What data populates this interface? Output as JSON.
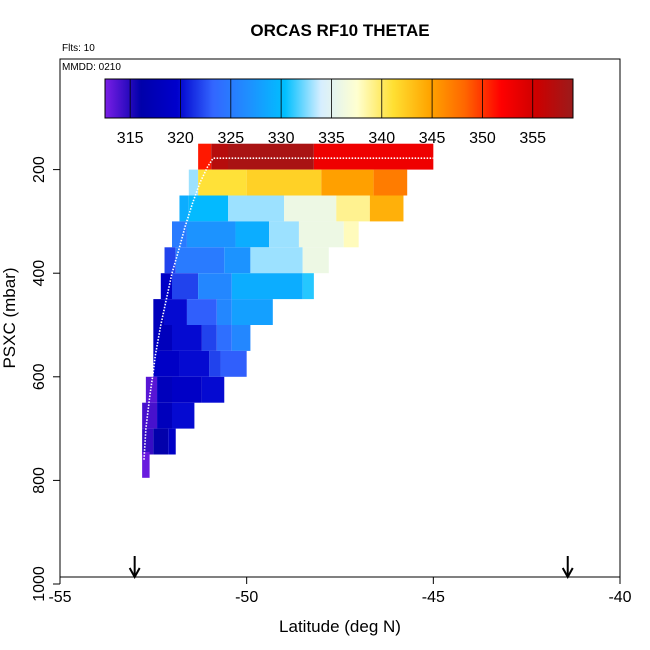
{
  "chart_data": {
    "type": "heatmap",
    "title": "ORCAS RF10 THETAE",
    "annotations": {
      "flights": "Flts: 10",
      "date": "MMDD: 0210"
    },
    "xlabel": "Latitude (deg N)",
    "ylabel": "PSXC (mbar)",
    "xlim": [
      -55,
      -40
    ],
    "ylim": [
      1000,
      0
    ],
    "x_ticks": [
      -55,
      -50,
      -45,
      -40
    ],
    "x_tick_labels": [
      "-55",
      "-50",
      "-45",
      "-40"
    ],
    "y_ticks": [
      200,
      400,
      600,
      800,
      1000
    ],
    "y_tick_labels": [
      "200",
      "400",
      "600",
      "800",
      "1000"
    ],
    "colorbar": {
      "min": 312.5,
      "max": 359,
      "ticks": [
        315,
        320,
        325,
        330,
        335,
        340,
        345,
        350,
        355
      ],
      "tick_labels": [
        "315",
        "320",
        "325",
        "330",
        "335",
        "340",
        "345",
        "350",
        "355"
      ],
      "stops": [
        "#7a1ee6",
        "#0000aa",
        "#0000cc",
        "#3366ff",
        "#1e90ff",
        "#00bfff",
        "#d6eeff",
        "#ffffd0",
        "#ffe033",
        "#ffa500",
        "#ff6600",
        "#ff0000",
        "#cc0000",
        "#9b1b1b"
      ]
    },
    "arrows_at_latitude": [
      -53,
      -41.4
    ],
    "cell_height_mbar": 50,
    "rows": [
      {
        "p": 175,
        "cells": [
          [
            -51.3,
            -50.95,
            351
          ],
          [
            -50.95,
            -50.5,
            357
          ],
          [
            -50.5,
            -48.2,
            358
          ],
          [
            -48.2,
            -45,
            353
          ]
        ]
      },
      {
        "p": 225,
        "cells": [
          [
            -51.55,
            -51.3,
            333
          ],
          [
            -51.3,
            -50.0,
            341
          ],
          [
            -50.0,
            -48.0,
            342
          ],
          [
            -48.0,
            -46.6,
            345
          ],
          [
            -46.6,
            -45.7,
            347
          ]
        ]
      },
      {
        "p": 275,
        "cells": [
          [
            -51.8,
            -51.55,
            329
          ],
          [
            -51.55,
            -50.5,
            330
          ],
          [
            -50.5,
            -49.0,
            333
          ],
          [
            -49.0,
            -47.6,
            336
          ],
          [
            -47.6,
            -46.7,
            339
          ],
          [
            -46.7,
            -45.8,
            344
          ]
        ]
      },
      {
        "p": 325,
        "cells": [
          [
            -52.0,
            -51.6,
            325
          ],
          [
            -51.6,
            -50.3,
            327
          ],
          [
            -50.3,
            -49.4,
            329
          ],
          [
            -49.4,
            -48.6,
            333
          ],
          [
            -48.6,
            -47.4,
            336
          ],
          [
            -47.4,
            -47.0,
            338
          ]
        ]
      },
      {
        "p": 375,
        "cells": [
          [
            -52.2,
            -51.9,
            322
          ],
          [
            -51.9,
            -50.6,
            325
          ],
          [
            -50.6,
            -49.9,
            327
          ],
          [
            -49.9,
            -48.5,
            333
          ],
          [
            -48.5,
            -47.8,
            336
          ]
        ]
      },
      {
        "p": 425,
        "cells": [
          [
            -52.3,
            -52.0,
            319
          ],
          [
            -52.0,
            -51.3,
            322
          ],
          [
            -51.3,
            -50.4,
            326
          ],
          [
            -50.4,
            -48.5,
            329
          ],
          [
            -48.5,
            -48.2,
            331
          ]
        ]
      },
      {
        "p": 475,
        "cells": [
          [
            -52.5,
            -52.2,
            318
          ],
          [
            -52.2,
            -51.6,
            320
          ],
          [
            -51.6,
            -50.8,
            323
          ],
          [
            -50.8,
            -50.4,
            326
          ],
          [
            -50.4,
            -49.3,
            328
          ]
        ]
      },
      {
        "p": 525,
        "cells": [
          [
            -52.5,
            -52.0,
            318
          ],
          [
            -52.0,
            -51.2,
            320
          ],
          [
            -51.2,
            -50.8,
            322
          ],
          [
            -50.8,
            -50.4,
            324
          ],
          [
            -50.4,
            -49.9,
            326
          ]
        ]
      },
      {
        "p": 575,
        "cells": [
          [
            -52.5,
            -51.8,
            319
          ],
          [
            -51.8,
            -51.0,
            320
          ],
          [
            -51.0,
            -50.7,
            322
          ],
          [
            -50.7,
            -50.0,
            323
          ]
        ]
      },
      {
        "p": 625,
        "cells": [
          [
            -52.7,
            -52.4,
            313.5
          ],
          [
            -52.4,
            -52.0,
            318
          ],
          [
            -52.0,
            -51.2,
            319
          ],
          [
            -51.2,
            -50.6,
            320
          ]
        ]
      },
      {
        "p": 675,
        "cells": [
          [
            -52.8,
            -52.4,
            314
          ],
          [
            -52.4,
            -52.0,
            318
          ],
          [
            -52.0,
            -51.4,
            320
          ]
        ]
      },
      {
        "p": 725,
        "cells": [
          [
            -52.8,
            -52.5,
            314.5
          ],
          [
            -52.5,
            -52.1,
            316
          ],
          [
            -52.1,
            -51.9,
            319
          ]
        ]
      },
      {
        "p": 770,
        "cells": [
          [
            -52.8,
            -52.6,
            313
          ]
        ]
      }
    ],
    "flight_track": [
      [
        -52.75,
        760
      ],
      [
        -52.7,
        700
      ],
      [
        -52.6,
        640
      ],
      [
        -52.5,
        590
      ],
      [
        -52.45,
        560
      ],
      [
        -52.3,
        500
      ],
      [
        -52.15,
        450
      ],
      [
        -52.0,
        400
      ],
      [
        -51.8,
        350
      ],
      [
        -51.65,
        310
      ],
      [
        -51.45,
        265
      ],
      [
        -51.25,
        225
      ],
      [
        -51.05,
        195
      ],
      [
        -50.9,
        178
      ],
      [
        -45,
        178
      ]
    ]
  }
}
